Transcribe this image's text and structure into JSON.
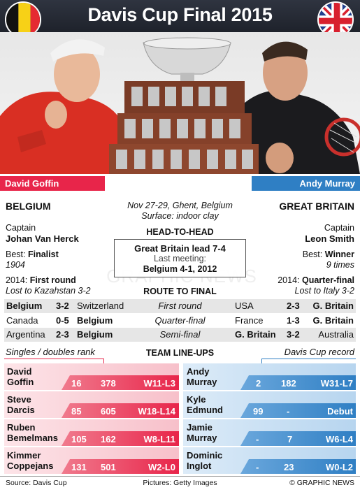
{
  "title": "Davis Cup Final 2015",
  "players": {
    "left": "David Goffin",
    "right": "Andy Murray"
  },
  "left": {
    "country": "BELGIUM",
    "captain_label": "Captain",
    "captain": "Johan Van Herck",
    "best_label": "Best:",
    "best": "Finalist",
    "best_year": "1904",
    "y2014_label": "2014:",
    "y2014": "First round",
    "y2014_note": "Lost to Kazahstan 3-2"
  },
  "right": {
    "country": "GREAT BRITAIN",
    "captain_label": "Captain",
    "captain": "Leon Smith",
    "best_label": "Best:",
    "best": "Winner",
    "best_times": "9 times",
    "y2014_label": "2014:",
    "y2014": "Quarter-final",
    "y2014_note": "Lost to Italy 3-2"
  },
  "center": {
    "dates": "Nov 27-29, Ghent, Belgium",
    "surface": "Surface: indoor clay",
    "h2h_title": "HEAD-TO-HEAD",
    "h2h": "Great Britain lead 7-4",
    "last_meeting_label": "Last meeting:",
    "last_meeting": "Belgium 4-1, 2012",
    "route_title": "ROUTE TO FINAL"
  },
  "route": [
    {
      "l_team": "Belgium",
      "l_score": "3-2",
      "l_opp": "Switzerland",
      "round": "First round",
      "r_opp": "USA",
      "r_score": "2-3",
      "r_team": "G. Britain"
    },
    {
      "l_team": "Canada",
      "l_score": "0-5",
      "l_opp": "Belgium",
      "round": "Quarter-final",
      "r_opp": "France",
      "r_score": "1-3",
      "r_team": "G. Britain"
    },
    {
      "l_team": "Argentina",
      "l_score": "2-3",
      "l_opp": "Belgium",
      "round": "Semi-final",
      "r_opp": "G. Britain",
      "r_score": "3-2",
      "r_team": "Australia"
    }
  ],
  "lineups": {
    "left_caption": "Singles / doubles rank",
    "title": "TEAM LINE-UPS",
    "right_caption": "Davis Cup record",
    "left": [
      {
        "first": "David",
        "last": "Goffin",
        "singles": "16",
        "doubles": "378",
        "record": "W11-L3"
      },
      {
        "first": "Steve",
        "last": "Darcis",
        "singles": "85",
        "doubles": "605",
        "record": "W18-L14"
      },
      {
        "first": "Ruben",
        "last": "Bemelmans",
        "singles": "105",
        "doubles": "162",
        "record": "W8-L11"
      },
      {
        "first": "Kimmer",
        "last": "Coppejans",
        "singles": "131",
        "doubles": "501",
        "record": "W2-L0"
      }
    ],
    "right": [
      {
        "first": "Andy",
        "last": "Murray",
        "singles": "2",
        "doubles": "182",
        "record": "W31-L7"
      },
      {
        "first": "Kyle",
        "last": "Edmund",
        "singles": "99",
        "doubles": "-",
        "record": "Debut"
      },
      {
        "first": "Jamie",
        "last": "Murray",
        "singles": "-",
        "doubles": "7",
        "record": "W6-L4"
      },
      {
        "first": "Dominic",
        "last": "Inglot",
        "singles": "-",
        "doubles": "23",
        "record": "W0-L2"
      }
    ]
  },
  "footer": {
    "source": "Source: Davis Cup",
    "pictures": "Pictures: Getty Images",
    "credit": "© GRAPHIC NEWS"
  },
  "watermark": "GRAPHIC NEWS",
  "colors": {
    "belgium": "#e8254a",
    "britain": "#2f7fc4",
    "header": "#252a33",
    "route_row": "#e6e6e6"
  }
}
